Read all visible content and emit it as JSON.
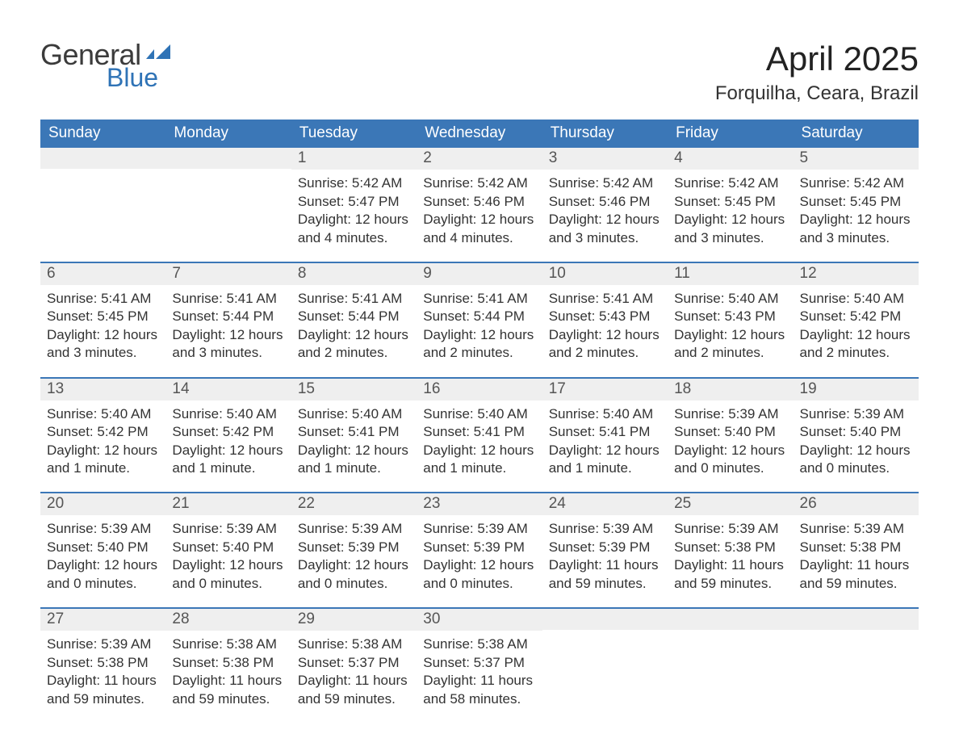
{
  "brand": {
    "general": "General",
    "blue": "Blue"
  },
  "title": "April 2025",
  "location": "Forquilha, Ceara, Brazil",
  "colors": {
    "headerBg": "#3b77b7",
    "headerText": "#ffffff",
    "dayHeaderBg": "#efefef",
    "weekDivider": "#3b77b7",
    "bodyText": "#333333",
    "logoBlue": "#2f73b6"
  },
  "dow": [
    "Sunday",
    "Monday",
    "Tuesday",
    "Wednesday",
    "Thursday",
    "Friday",
    "Saturday"
  ],
  "weeks": [
    [
      {
        "day": "",
        "lines": []
      },
      {
        "day": "",
        "lines": []
      },
      {
        "day": "1",
        "lines": [
          "Sunrise: 5:42 AM",
          "Sunset: 5:47 PM",
          "Daylight: 12 hours",
          "and 4 minutes."
        ]
      },
      {
        "day": "2",
        "lines": [
          "Sunrise: 5:42 AM",
          "Sunset: 5:46 PM",
          "Daylight: 12 hours",
          "and 4 minutes."
        ]
      },
      {
        "day": "3",
        "lines": [
          "Sunrise: 5:42 AM",
          "Sunset: 5:46 PM",
          "Daylight: 12 hours",
          "and 3 minutes."
        ]
      },
      {
        "day": "4",
        "lines": [
          "Sunrise: 5:42 AM",
          "Sunset: 5:45 PM",
          "Daylight: 12 hours",
          "and 3 minutes."
        ]
      },
      {
        "day": "5",
        "lines": [
          "Sunrise: 5:42 AM",
          "Sunset: 5:45 PM",
          "Daylight: 12 hours",
          "and 3 minutes."
        ]
      }
    ],
    [
      {
        "day": "6",
        "lines": [
          "Sunrise: 5:41 AM",
          "Sunset: 5:45 PM",
          "Daylight: 12 hours",
          "and 3 minutes."
        ]
      },
      {
        "day": "7",
        "lines": [
          "Sunrise: 5:41 AM",
          "Sunset: 5:44 PM",
          "Daylight: 12 hours",
          "and 3 minutes."
        ]
      },
      {
        "day": "8",
        "lines": [
          "Sunrise: 5:41 AM",
          "Sunset: 5:44 PM",
          "Daylight: 12 hours",
          "and 2 minutes."
        ]
      },
      {
        "day": "9",
        "lines": [
          "Sunrise: 5:41 AM",
          "Sunset: 5:44 PM",
          "Daylight: 12 hours",
          "and 2 minutes."
        ]
      },
      {
        "day": "10",
        "lines": [
          "Sunrise: 5:41 AM",
          "Sunset: 5:43 PM",
          "Daylight: 12 hours",
          "and 2 minutes."
        ]
      },
      {
        "day": "11",
        "lines": [
          "Sunrise: 5:40 AM",
          "Sunset: 5:43 PM",
          "Daylight: 12 hours",
          "and 2 minutes."
        ]
      },
      {
        "day": "12",
        "lines": [
          "Sunrise: 5:40 AM",
          "Sunset: 5:42 PM",
          "Daylight: 12 hours",
          "and 2 minutes."
        ]
      }
    ],
    [
      {
        "day": "13",
        "lines": [
          "Sunrise: 5:40 AM",
          "Sunset: 5:42 PM",
          "Daylight: 12 hours",
          "and 1 minute."
        ]
      },
      {
        "day": "14",
        "lines": [
          "Sunrise: 5:40 AM",
          "Sunset: 5:42 PM",
          "Daylight: 12 hours",
          "and 1 minute."
        ]
      },
      {
        "day": "15",
        "lines": [
          "Sunrise: 5:40 AM",
          "Sunset: 5:41 PM",
          "Daylight: 12 hours",
          "and 1 minute."
        ]
      },
      {
        "day": "16",
        "lines": [
          "Sunrise: 5:40 AM",
          "Sunset: 5:41 PM",
          "Daylight: 12 hours",
          "and 1 minute."
        ]
      },
      {
        "day": "17",
        "lines": [
          "Sunrise: 5:40 AM",
          "Sunset: 5:41 PM",
          "Daylight: 12 hours",
          "and 1 minute."
        ]
      },
      {
        "day": "18",
        "lines": [
          "Sunrise: 5:39 AM",
          "Sunset: 5:40 PM",
          "Daylight: 12 hours",
          "and 0 minutes."
        ]
      },
      {
        "day": "19",
        "lines": [
          "Sunrise: 5:39 AM",
          "Sunset: 5:40 PM",
          "Daylight: 12 hours",
          "and 0 minutes."
        ]
      }
    ],
    [
      {
        "day": "20",
        "lines": [
          "Sunrise: 5:39 AM",
          "Sunset: 5:40 PM",
          "Daylight: 12 hours",
          "and 0 minutes."
        ]
      },
      {
        "day": "21",
        "lines": [
          "Sunrise: 5:39 AM",
          "Sunset: 5:40 PM",
          "Daylight: 12 hours",
          "and 0 minutes."
        ]
      },
      {
        "day": "22",
        "lines": [
          "Sunrise: 5:39 AM",
          "Sunset: 5:39 PM",
          "Daylight: 12 hours",
          "and 0 minutes."
        ]
      },
      {
        "day": "23",
        "lines": [
          "Sunrise: 5:39 AM",
          "Sunset: 5:39 PM",
          "Daylight: 12 hours",
          "and 0 minutes."
        ]
      },
      {
        "day": "24",
        "lines": [
          "Sunrise: 5:39 AM",
          "Sunset: 5:39 PM",
          "Daylight: 11 hours",
          "and 59 minutes."
        ]
      },
      {
        "day": "25",
        "lines": [
          "Sunrise: 5:39 AM",
          "Sunset: 5:38 PM",
          "Daylight: 11 hours",
          "and 59 minutes."
        ]
      },
      {
        "day": "26",
        "lines": [
          "Sunrise: 5:39 AM",
          "Sunset: 5:38 PM",
          "Daylight: 11 hours",
          "and 59 minutes."
        ]
      }
    ],
    [
      {
        "day": "27",
        "lines": [
          "Sunrise: 5:39 AM",
          "Sunset: 5:38 PM",
          "Daylight: 11 hours",
          "and 59 minutes."
        ]
      },
      {
        "day": "28",
        "lines": [
          "Sunrise: 5:38 AM",
          "Sunset: 5:38 PM",
          "Daylight: 11 hours",
          "and 59 minutes."
        ]
      },
      {
        "day": "29",
        "lines": [
          "Sunrise: 5:38 AM",
          "Sunset: 5:37 PM",
          "Daylight: 11 hours",
          "and 59 minutes."
        ]
      },
      {
        "day": "30",
        "lines": [
          "Sunrise: 5:38 AM",
          "Sunset: 5:37 PM",
          "Daylight: 11 hours",
          "and 58 minutes."
        ]
      },
      {
        "day": "",
        "lines": []
      },
      {
        "day": "",
        "lines": []
      },
      {
        "day": "",
        "lines": []
      }
    ]
  ]
}
